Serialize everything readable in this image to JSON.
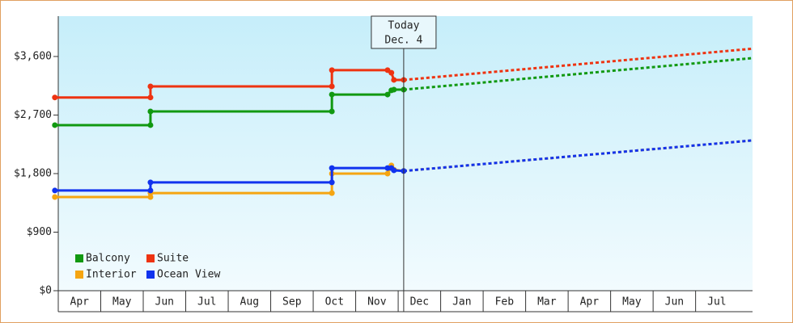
{
  "chart_data": {
    "type": "step-line",
    "categories": [
      "Apr",
      "May",
      "Jun",
      "Jul",
      "Aug",
      "Sep",
      "Oct",
      "Nov",
      "Dec",
      "Jan",
      "Feb",
      "Mar",
      "Apr",
      "May",
      "Jun",
      "Jul"
    ],
    "xlim": [
      0,
      16.34
    ],
    "ylim": [
      0,
      4220
    ],
    "yticks": [
      {
        "value": 0,
        "label": "$0"
      },
      {
        "value": 900,
        "label": "$900"
      },
      {
        "value": 1800,
        "label": "$1,800"
      },
      {
        "value": 2700,
        "label": "$2,700"
      },
      {
        "value": 3600,
        "label": "$3,600"
      }
    ],
    "annotation": {
      "lines": [
        "Today",
        "Dec. 4"
      ],
      "x": 8.13
    },
    "legend": "lower left",
    "series": [
      {
        "name": "Balcony",
        "color": "#119911",
        "x": [
          -0.08,
          2.17,
          2.17,
          6.44,
          6.44,
          7.75,
          7.84,
          7.9,
          8.13,
          16.34
        ],
        "values": [
          2545,
          2545,
          2755,
          2755,
          3015,
          3015,
          3080,
          3090,
          3090,
          3575
        ]
      },
      {
        "name": "Suite",
        "color": "#ee3311",
        "x": [
          -0.08,
          2.17,
          2.17,
          6.44,
          6.44,
          7.75,
          7.84,
          7.9,
          8.13,
          16.34
        ],
        "values": [
          2970,
          2970,
          3140,
          3140,
          3390,
          3390,
          3350,
          3240,
          3240,
          3720
        ]
      },
      {
        "name": "Interior",
        "color": "#f5a511",
        "x": [
          -0.08,
          2.17,
          2.17,
          6.44,
          6.44,
          7.75,
          7.84,
          7.9,
          8.13,
          16.34
        ],
        "values": [
          1440,
          1440,
          1500,
          1500,
          1800,
          1800,
          1925,
          1860,
          1840,
          2310
        ]
      },
      {
        "name": "Ocean View",
        "color": "#1133ee",
        "x": [
          -0.08,
          2.17,
          2.17,
          6.44,
          6.44,
          7.75,
          7.84,
          7.9,
          8.13,
          16.34
        ],
        "values": [
          1540,
          1540,
          1665,
          1665,
          1885,
          1885,
          1885,
          1850,
          1840,
          2310
        ]
      }
    ]
  }
}
